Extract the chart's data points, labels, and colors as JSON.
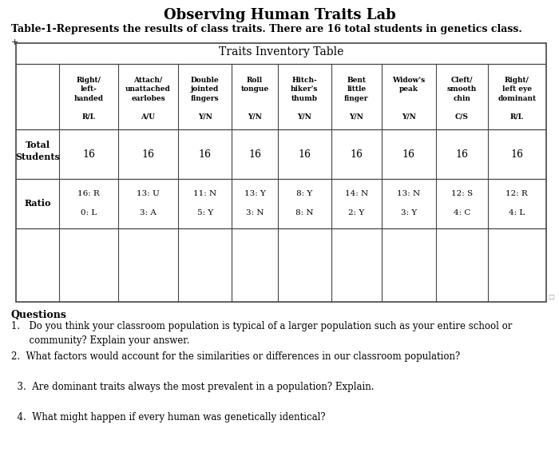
{
  "title": "Observing Human Traits Lab",
  "subtitle": "Table-1-Represents the results of class traits. There are 16 total students in genetics class.",
  "table_title": "Traits Inventory Table",
  "col_header_lines": [
    [
      "",
      ""
    ],
    [
      "Right/",
      "left-",
      "handed",
      "",
      "R/L"
    ],
    [
      "Attach/",
      "unattached",
      "earlobes",
      "",
      "A/U"
    ],
    [
      "Double",
      "jointed",
      "fingers",
      "",
      "Y/N"
    ],
    [
      "Roll",
      "tongue",
      "",
      "",
      "Y/N"
    ],
    [
      "Hitch-",
      "hiker's",
      "thumb",
      "",
      "Y/N"
    ],
    [
      "Bent",
      "little",
      "finger",
      "",
      "Y/N"
    ],
    [
      "Widow's",
      "peak",
      "",
      "",
      "Y/N"
    ],
    [
      "Cleft/",
      "smooth",
      "chin",
      "",
      "C/S"
    ],
    [
      "Right/",
      "left eye",
      "dominant",
      "",
      "R/L"
    ]
  ],
  "row1_label": "Total\nStudents",
  "row1_values": [
    "16",
    "16",
    "16",
    "16",
    "16",
    "16",
    "16",
    "16",
    "16"
  ],
  "row2_label": "Ratio",
  "row2_val1": [
    "16: R",
    "13: U",
    "11: N",
    "13: Y",
    "8: Y",
    "14: N",
    "13: N",
    "12: S",
    "12: R"
  ],
  "row2_val2": [
    "0: L",
    "3: A",
    "5: Y",
    "3: N",
    "8: N",
    "2: Y",
    "3: Y",
    "4: C",
    "4: L"
  ],
  "questions_label": "Questions",
  "q1_line1": "1.   Do you think your classroom population is typical of a larger population such as your entire school or",
  "q1_line2": "      community? Explain your answer.",
  "q2": "2.  What factors would account for the similarities or differences in our classroom population?",
  "q3": "  3.  Are dominant traits always the most prevalent in a population? Explain.",
  "q4": "  4.  What might happen if every human was genetically identical?"
}
